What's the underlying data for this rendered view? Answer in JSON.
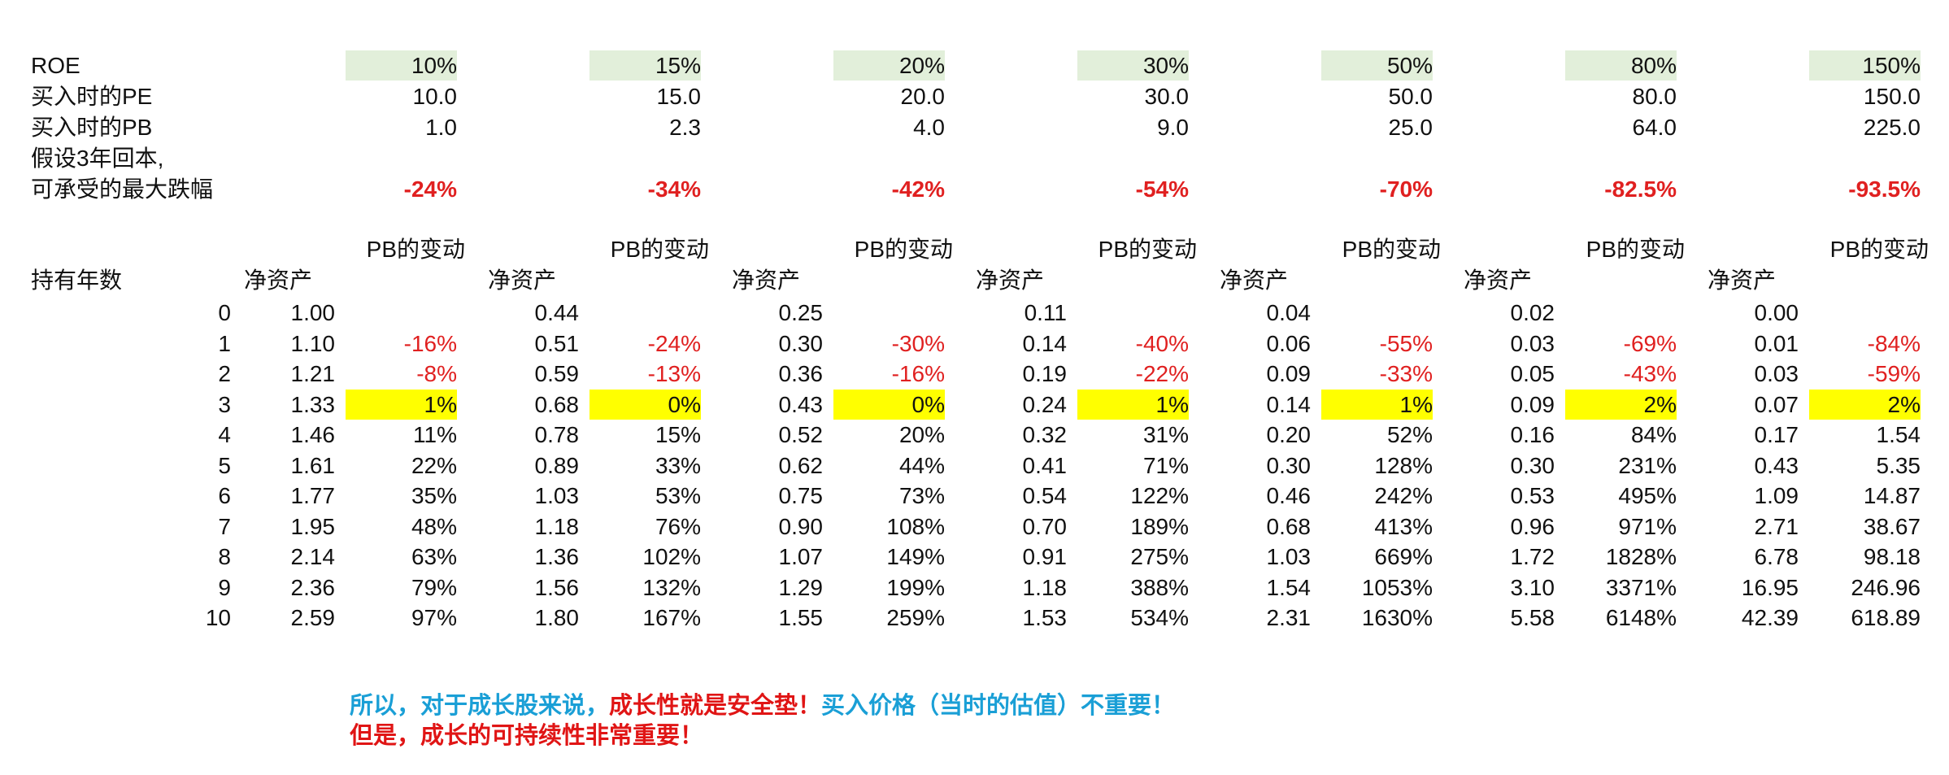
{
  "row_labels": {
    "roe": "ROE",
    "pe": "买入时的PE",
    "pb": "买入时的PB",
    "assume_line1": "假设3年回本,",
    "assume_line2": "可承受的最大跌幅",
    "holding_years": "持有年数"
  },
  "sub_headers": {
    "pb_change": "PB的变动",
    "net_assets": "净资产"
  },
  "years": [
    "0",
    "1",
    "2",
    "3",
    "4",
    "5",
    "6",
    "7",
    "8",
    "9",
    "10"
  ],
  "highlight_year": "3",
  "colors": {
    "header_fill": "#e2efda",
    "highlight_fill": "#ffff00",
    "negative": "#e02020",
    "note_blue": "#1a9fd6",
    "note_red": "#e01515"
  },
  "groups": [
    {
      "roe": "10%",
      "pe": "10.0",
      "pb": "1.0",
      "max_drop": "-24%",
      "net_assets": [
        "1.00",
        "1.10",
        "1.21",
        "1.33",
        "1.46",
        "1.61",
        "1.77",
        "1.95",
        "2.14",
        "2.36",
        "2.59"
      ],
      "pb_change": [
        "",
        "-16%",
        "-8%",
        "1%",
        "11%",
        "22%",
        "35%",
        "48%",
        "63%",
        "79%",
        "97%"
      ]
    },
    {
      "roe": "15%",
      "pe": "15.0",
      "pb": "2.3",
      "max_drop": "-34%",
      "net_assets": [
        "0.44",
        "0.51",
        "0.59",
        "0.68",
        "0.78",
        "0.89",
        "1.03",
        "1.18",
        "1.36",
        "1.56",
        "1.80"
      ],
      "pb_change": [
        "",
        "-24%",
        "-13%",
        "0%",
        "15%",
        "33%",
        "53%",
        "76%",
        "102%",
        "132%",
        "167%"
      ]
    },
    {
      "roe": "20%",
      "pe": "20.0",
      "pb": "4.0",
      "max_drop": "-42%",
      "net_assets": [
        "0.25",
        "0.30",
        "0.36",
        "0.43",
        "0.52",
        "0.62",
        "0.75",
        "0.90",
        "1.07",
        "1.29",
        "1.55"
      ],
      "pb_change": [
        "",
        "-30%",
        "-16%",
        "0%",
        "20%",
        "44%",
        "73%",
        "108%",
        "149%",
        "199%",
        "259%"
      ]
    },
    {
      "roe": "30%",
      "pe": "30.0",
      "pb": "9.0",
      "max_drop": "-54%",
      "net_assets": [
        "0.11",
        "0.14",
        "0.19",
        "0.24",
        "0.32",
        "0.41",
        "0.54",
        "0.70",
        "0.91",
        "1.18",
        "1.53"
      ],
      "pb_change": [
        "",
        "-40%",
        "-22%",
        "1%",
        "31%",
        "71%",
        "122%",
        "189%",
        "275%",
        "388%",
        "534%"
      ]
    },
    {
      "roe": "50%",
      "pe": "50.0",
      "pb": "25.0",
      "max_drop": "-70%",
      "net_assets": [
        "0.04",
        "0.06",
        "0.09",
        "0.14",
        "0.20",
        "0.30",
        "0.46",
        "0.68",
        "1.03",
        "1.54",
        "2.31"
      ],
      "pb_change": [
        "",
        "-55%",
        "-33%",
        "1%",
        "52%",
        "128%",
        "242%",
        "413%",
        "669%",
        "1053%",
        "1630%"
      ]
    },
    {
      "roe": "80%",
      "pe": "80.0",
      "pb": "64.0",
      "max_drop": "-82.5%",
      "net_assets": [
        "0.02",
        "0.03",
        "0.05",
        "0.09",
        "0.16",
        "0.30",
        "0.53",
        "0.96",
        "1.72",
        "3.10",
        "5.58"
      ],
      "pb_change": [
        "",
        "-69%",
        "-43%",
        "2%",
        "84%",
        "231%",
        "495%",
        "971%",
        "1828%",
        "3371%",
        "6148%"
      ]
    },
    {
      "roe": "150%",
      "pe": "150.0",
      "pb": "225.0",
      "max_drop": "-93.5%",
      "net_assets": [
        "0.00",
        "0.01",
        "0.03",
        "0.07",
        "0.17",
        "0.43",
        "1.09",
        "2.71",
        "6.78",
        "16.95",
        "42.39"
      ],
      "pb_change": [
        "",
        "-84%",
        "-59%",
        "2%",
        "1.54",
        "5.35",
        "14.87",
        "38.67",
        "98.18",
        "246.96",
        "618.89"
      ]
    }
  ],
  "notes": {
    "line1_part1": "所以，对于成长股来说，",
    "line1_part2": "成长性就是安全垫！",
    "line1_part3": "买入价格（当时的估值）不重要！",
    "line2": "但是，成长的可持续性非常重要！"
  }
}
